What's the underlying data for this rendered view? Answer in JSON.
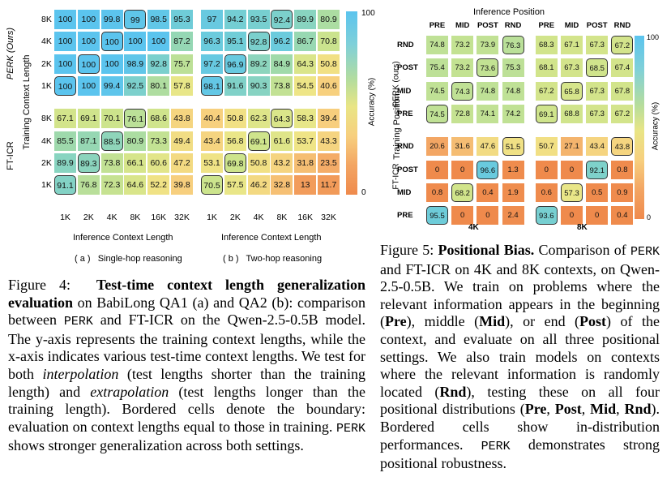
{
  "figure4": {
    "chart_data": [
      {
        "type": "heatmap",
        "subtitle": "( a )   Single-hop reasoning",
        "xlabel": "Inference Context Length",
        "ylabel": "Training Context Length",
        "x_categories": [
          "1K",
          "2K",
          "4K",
          "8K",
          "16K",
          "32K"
        ],
        "row_labels": [
          "8K",
          "4K",
          "2K",
          "1K",
          "8K",
          "4K",
          "2K",
          "1K"
        ],
        "group_labels": [
          "PERK (Ours)",
          "FT-ICR"
        ],
        "values": [
          [
            100,
            100,
            99.8,
            99.0,
            98.5,
            95.3
          ],
          [
            100,
            100,
            100,
            100,
            100,
            87.2
          ],
          [
            100,
            100,
            100,
            98.9,
            92.8,
            75.7
          ],
          [
            100,
            100,
            99.4,
            92.5,
            80.1,
            57.8
          ],
          [
            67.1,
            69.1,
            70.1,
            76.1,
            68.6,
            43.8
          ],
          [
            85.5,
            87.1,
            88.5,
            80.9,
            73.3,
            49.4
          ],
          [
            89.9,
            89.3,
            73.8,
            66.1,
            60.6,
            47.2
          ],
          [
            91.1,
            76.8,
            72.3,
            64.6,
            52.2,
            39.8
          ]
        ],
        "bordered": [
          [
            0,
            3
          ],
          [
            1,
            2
          ],
          [
            2,
            1
          ],
          [
            3,
            0
          ],
          [
            4,
            3
          ],
          [
            5,
            2
          ],
          [
            6,
            1
          ],
          [
            7,
            0
          ]
        ]
      },
      {
        "type": "heatmap",
        "subtitle": "( b )   Two-hop reasoning",
        "xlabel": "Inference Context Length",
        "x_categories": [
          "1K",
          "2K",
          "4K",
          "8K",
          "16K",
          "32K"
        ],
        "values": [
          [
            97.0,
            94.2,
            93.5,
            92.4,
            89.9,
            80.9
          ],
          [
            96.3,
            95.1,
            92.8,
            96.2,
            86.7,
            70.8
          ],
          [
            97.2,
            96.9,
            89.2,
            84.9,
            64.3,
            50.8
          ],
          [
            98.1,
            91.6,
            90.3,
            73.8,
            54.5,
            40.6
          ],
          [
            40.4,
            50.8,
            62.3,
            64.3,
            58.3,
            39.4
          ],
          [
            43.4,
            56.8,
            69.1,
            61.6,
            53.7,
            43.3
          ],
          [
            53.1,
            69.8,
            50.8,
            43.2,
            31.8,
            23.5
          ],
          [
            70.5,
            57.5,
            46.2,
            32.8,
            13.0,
            11.7
          ]
        ],
        "bordered": [
          [
            0,
            3
          ],
          [
            1,
            2
          ],
          [
            2,
            1
          ],
          [
            3,
            0
          ],
          [
            4,
            3
          ],
          [
            5,
            2
          ],
          [
            6,
            1
          ],
          [
            7,
            0
          ]
        ]
      }
    ],
    "colorbar": {
      "label": "Accuracy (%)",
      "max": "100",
      "min": "0"
    },
    "caption": {
      "prefix": "Figure 4:  ",
      "bold": "Test-time context length generalization evaluation",
      "t1": " on BabiLong QA1 (a) and QA2 (b): comparison between ",
      "perk1": "PERK",
      "t2": " and FT-ICR on the Qwen-2.5-0.5B model. The y-axis represents the training context lengths, while the x-axis indicates various test-time context lengths.  We test for both ",
      "it1": "interpolation",
      "t3": " (test lengths shorter than the training length) and ",
      "it2": "extrapolation",
      "t4": " (test lengths longer than the training length). Bordered cells denote the boundary: evaluation on context lengths equal to those in training. ",
      "perk2": "PERK",
      "t5": " shows stronger generalization across both settings."
    }
  },
  "figure5": {
    "chart_data": {
      "type": "heatmap",
      "title": "Inference Position",
      "ylabel": "Training Position",
      "col_labels": [
        "PRE",
        "MID",
        "POST",
        "RND",
        "PRE",
        "MID",
        "POST",
        "RND"
      ],
      "row_labels": [
        "RND",
        "POST",
        "MID",
        "PRE",
        "RND",
        "POST",
        "MID",
        "PRE"
      ],
      "group_labels": [
        "PERK (ours)",
        "FT-ICR"
      ],
      "block_labels": [
        "4K",
        "8K"
      ],
      "values": [
        [
          74.8,
          73.2,
          73.9,
          76.3,
          68.3,
          67.1,
          67.3,
          67.2
        ],
        [
          75.4,
          73.2,
          73.6,
          75.3,
          68.1,
          67.3,
          68.5,
          67.4
        ],
        [
          74.5,
          74.3,
          74.8,
          74.8,
          67.2,
          65.8,
          67.3,
          67.8
        ],
        [
          74.5,
          72.8,
          74.1,
          74.2,
          69.1,
          68.8,
          67.3,
          67.2
        ],
        [
          20.6,
          31.6,
          47.6,
          51.5,
          50.7,
          27.1,
          43.4,
          43.8
        ],
        [
          0,
          0,
          96.6,
          1.3,
          0,
          0,
          92.1,
          0.8
        ],
        [
          0.8,
          68.2,
          0.4,
          1.9,
          0.6,
          57.3,
          0.5,
          0.9
        ],
        [
          95.5,
          0,
          0,
          2.4,
          93.6,
          0,
          0,
          0.4
        ]
      ],
      "bordered": [
        [
          0,
          3
        ],
        [
          1,
          2
        ],
        [
          2,
          1
        ],
        [
          3,
          0
        ],
        [
          0,
          7
        ],
        [
          1,
          6
        ],
        [
          2,
          5
        ],
        [
          3,
          4
        ],
        [
          4,
          3
        ],
        [
          5,
          2
        ],
        [
          6,
          1
        ],
        [
          7,
          0
        ],
        [
          4,
          7
        ],
        [
          5,
          6
        ],
        [
          6,
          5
        ],
        [
          7,
          4
        ]
      ]
    },
    "colorbar": {
      "label": "Accuracy (%)",
      "max": "100",
      "min": "0"
    },
    "caption": {
      "prefix": "Figure 5: ",
      "bold": "Positional Bias.",
      "t1": " Comparison of ",
      "perk1": "PERK",
      "t2": " and FT-ICR on 4K and 8K contexts, on Qwen-2.5-0.5B. We train on problems where the relevant information appears in the beginning (",
      "b1": "Pre",
      "t3": "), middle (",
      "b2": "Mid",
      "t4": "), or end (",
      "b3": "Post",
      "t5": ") of the context, and evaluate on all three positional settings. We also train models on contexts where the relevant information is randomly located (",
      "b4": "Rnd",
      "t6": "), testing these on all four positional distributions (",
      "b5": "Pre",
      "c1": ", ",
      "b6": "Post",
      "c2": ", ",
      "b7": "Mid",
      "c3": ", ",
      "b8": "Rnd",
      "t7": ").  Bordered cells show in-distribution performances. ",
      "perk2": "PERK",
      "t8": " demonstrates strong positional robustness."
    }
  }
}
